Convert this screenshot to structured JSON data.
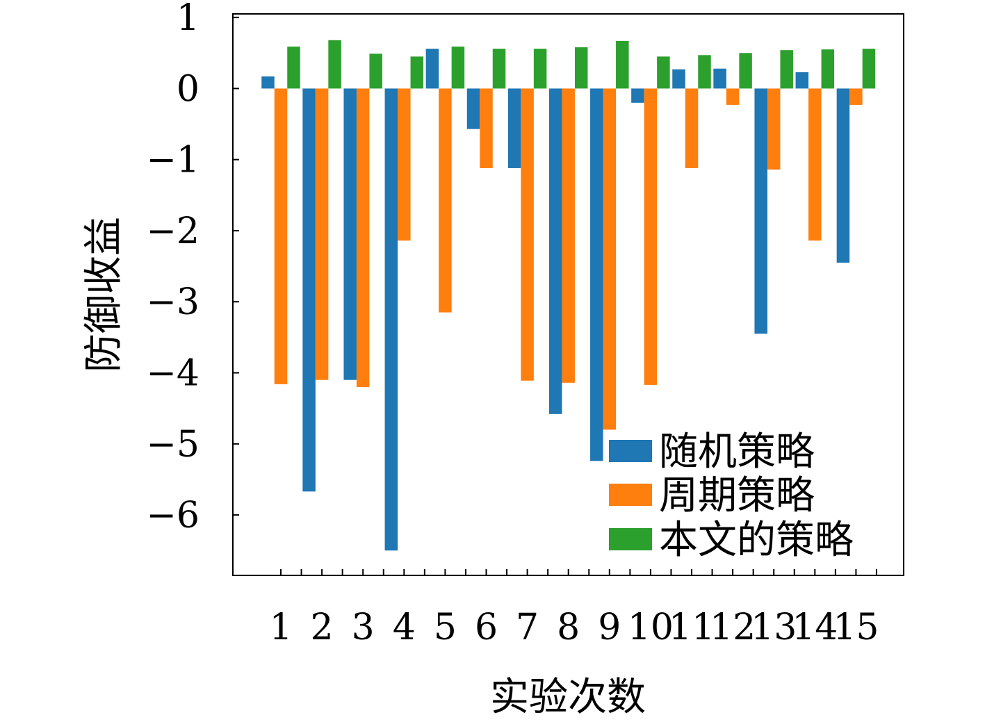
{
  "chart_data": {
    "type": "bar",
    "categories": [
      "1",
      "2",
      "3",
      "4",
      "5",
      "6",
      "7",
      "8",
      "9",
      "10",
      "11",
      "12",
      "13",
      "14",
      "15"
    ],
    "series": [
      {
        "name": "随机策略",
        "color": "#1f77b4",
        "values": [
          0.17,
          -5.67,
          -4.1,
          -6.5,
          0.56,
          -0.57,
          -1.12,
          -4.58,
          -5.24,
          -0.2,
          0.27,
          0.28,
          -3.45,
          0.23,
          -2.45
        ]
      },
      {
        "name": "周期策略",
        "color": "#ff7f0e",
        "values": [
          -4.16,
          -4.1,
          -4.2,
          -2.14,
          -3.15,
          -1.12,
          -4.11,
          -4.14,
          -4.8,
          -4.17,
          -1.12,
          -0.23,
          -1.14,
          -2.14,
          -0.23
        ]
      },
      {
        "name": "本文的策略",
        "color": "#2ca02c",
        "values": [
          0.59,
          0.68,
          0.49,
          0.45,
          0.59,
          0.56,
          0.56,
          0.58,
          0.67,
          0.45,
          0.47,
          0.5,
          0.54,
          0.55,
          0.56
        ]
      }
    ],
    "xlabel": "实验次数",
    "ylabel": "防御收益",
    "ylim": [
      -6.85,
      1.05
    ],
    "yticks": [
      "1",
      "0",
      "−1",
      "−2",
      "−3",
      "−4",
      "−5",
      "−6"
    ],
    "ytick_values": [
      1,
      0,
      -1,
      -2,
      -3,
      -4,
      -5,
      -6
    ],
    "legend_position": "lower-right",
    "grid": false
  }
}
